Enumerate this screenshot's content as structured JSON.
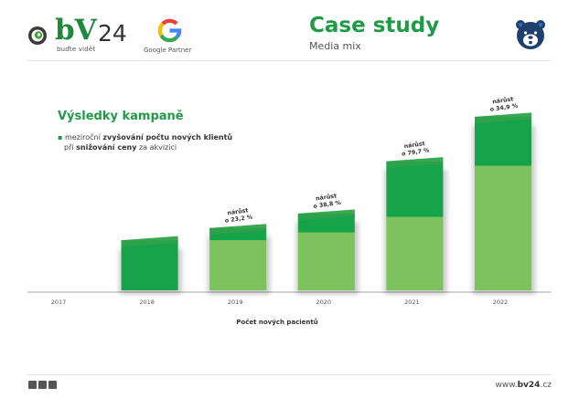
{
  "header": {
    "logo_main": "bV",
    "logo_number": "24",
    "logo_tagline": "buďte vidět",
    "partner_label": "Google Partner",
    "title": "Case study",
    "subtitle": "Media mix"
  },
  "chart_data": {
    "type": "bar",
    "title": "Výsledky kampaně",
    "note": {
      "line1_prefix": "meziroční ",
      "line1_bold": "zvyšování počtu nových klientů",
      "line2_prefix": "při ",
      "line2_bold": "snižování ceny",
      "line2_suffix": " za akvizici"
    },
    "xlabel": "Počet nových pacientů",
    "categories": [
      "2017",
      "2018",
      "2019",
      "2020",
      "2021",
      "2022"
    ],
    "series": [
      {
        "values": [
          0,
          0,
          45,
          52,
          66,
          112
        ]
      },
      {
        "values": [
          0,
          45,
          11,
          17,
          50,
          44
        ]
      }
    ],
    "ylim": [
      0,
      160
    ],
    "annotations": [
      {
        "category": "2019",
        "label_top": "nárůst",
        "label_bottom": "o 23,2 %"
      },
      {
        "category": "2020",
        "label_top": "nárůst",
        "label_bottom": "o 38,8 %"
      },
      {
        "category": "2021",
        "label_top": "nárůst",
        "label_bottom": "o 79,7 %"
      },
      {
        "category": "2022",
        "label_top": "nárůst",
        "label_bottom": "o 34,9 %"
      }
    ],
    "colors": {
      "lower": "#7cc35f",
      "upper": "#16a34a",
      "lower_top": "#5fae47",
      "upper_top": "#2fa24a"
    },
    "grid": false,
    "legend": "none"
  },
  "footer": {
    "url_prefix": "www.",
    "url_bold": "bv24",
    "url_suffix": ".cz",
    "social_icons": [
      "facebook-icon",
      "twitter-icon",
      "linkedin-icon"
    ]
  }
}
